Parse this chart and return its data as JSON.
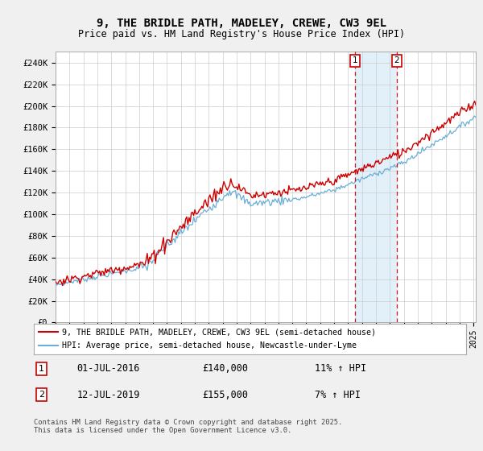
{
  "title": "9, THE BRIDLE PATH, MADELEY, CREWE, CW3 9EL",
  "subtitle": "Price paid vs. HM Land Registry's House Price Index (HPI)",
  "ylabel_ticks": [
    "£0",
    "£20K",
    "£40K",
    "£60K",
    "£80K",
    "£100K",
    "£120K",
    "£140K",
    "£160K",
    "£180K",
    "£200K",
    "£220K",
    "£240K"
  ],
  "ylim": [
    0,
    250000
  ],
  "ytick_values": [
    0,
    20000,
    40000,
    60000,
    80000,
    100000,
    120000,
    140000,
    160000,
    180000,
    200000,
    220000,
    240000
  ],
  "red_line_color": "#cc0000",
  "blue_line_color": "#6baed6",
  "dashed_line_color": "#cc0000",
  "span_color": "#d0e8f5",
  "legend_label_red": "9, THE BRIDLE PATH, MADELEY, CREWE, CW3 9EL (semi-detached house)",
  "legend_label_blue": "HPI: Average price, semi-detached house, Newcastle-under-Lyme",
  "purchase1_date": "01-JUL-2016",
  "purchase1_price": "£140,000",
  "purchase1_hpi": "11% ↑ HPI",
  "purchase2_date": "12-JUL-2019",
  "purchase2_price": "£155,000",
  "purchase2_hpi": "7% ↑ HPI",
  "footer": "Contains HM Land Registry data © Crown copyright and database right 2025.\nThis data is licensed under the Open Government Licence v3.0.",
  "background_color": "#f0f0f0",
  "plot_bg_color": "#ffffff",
  "fig_width": 6.0,
  "fig_height": 5.6,
  "dpi": 100
}
